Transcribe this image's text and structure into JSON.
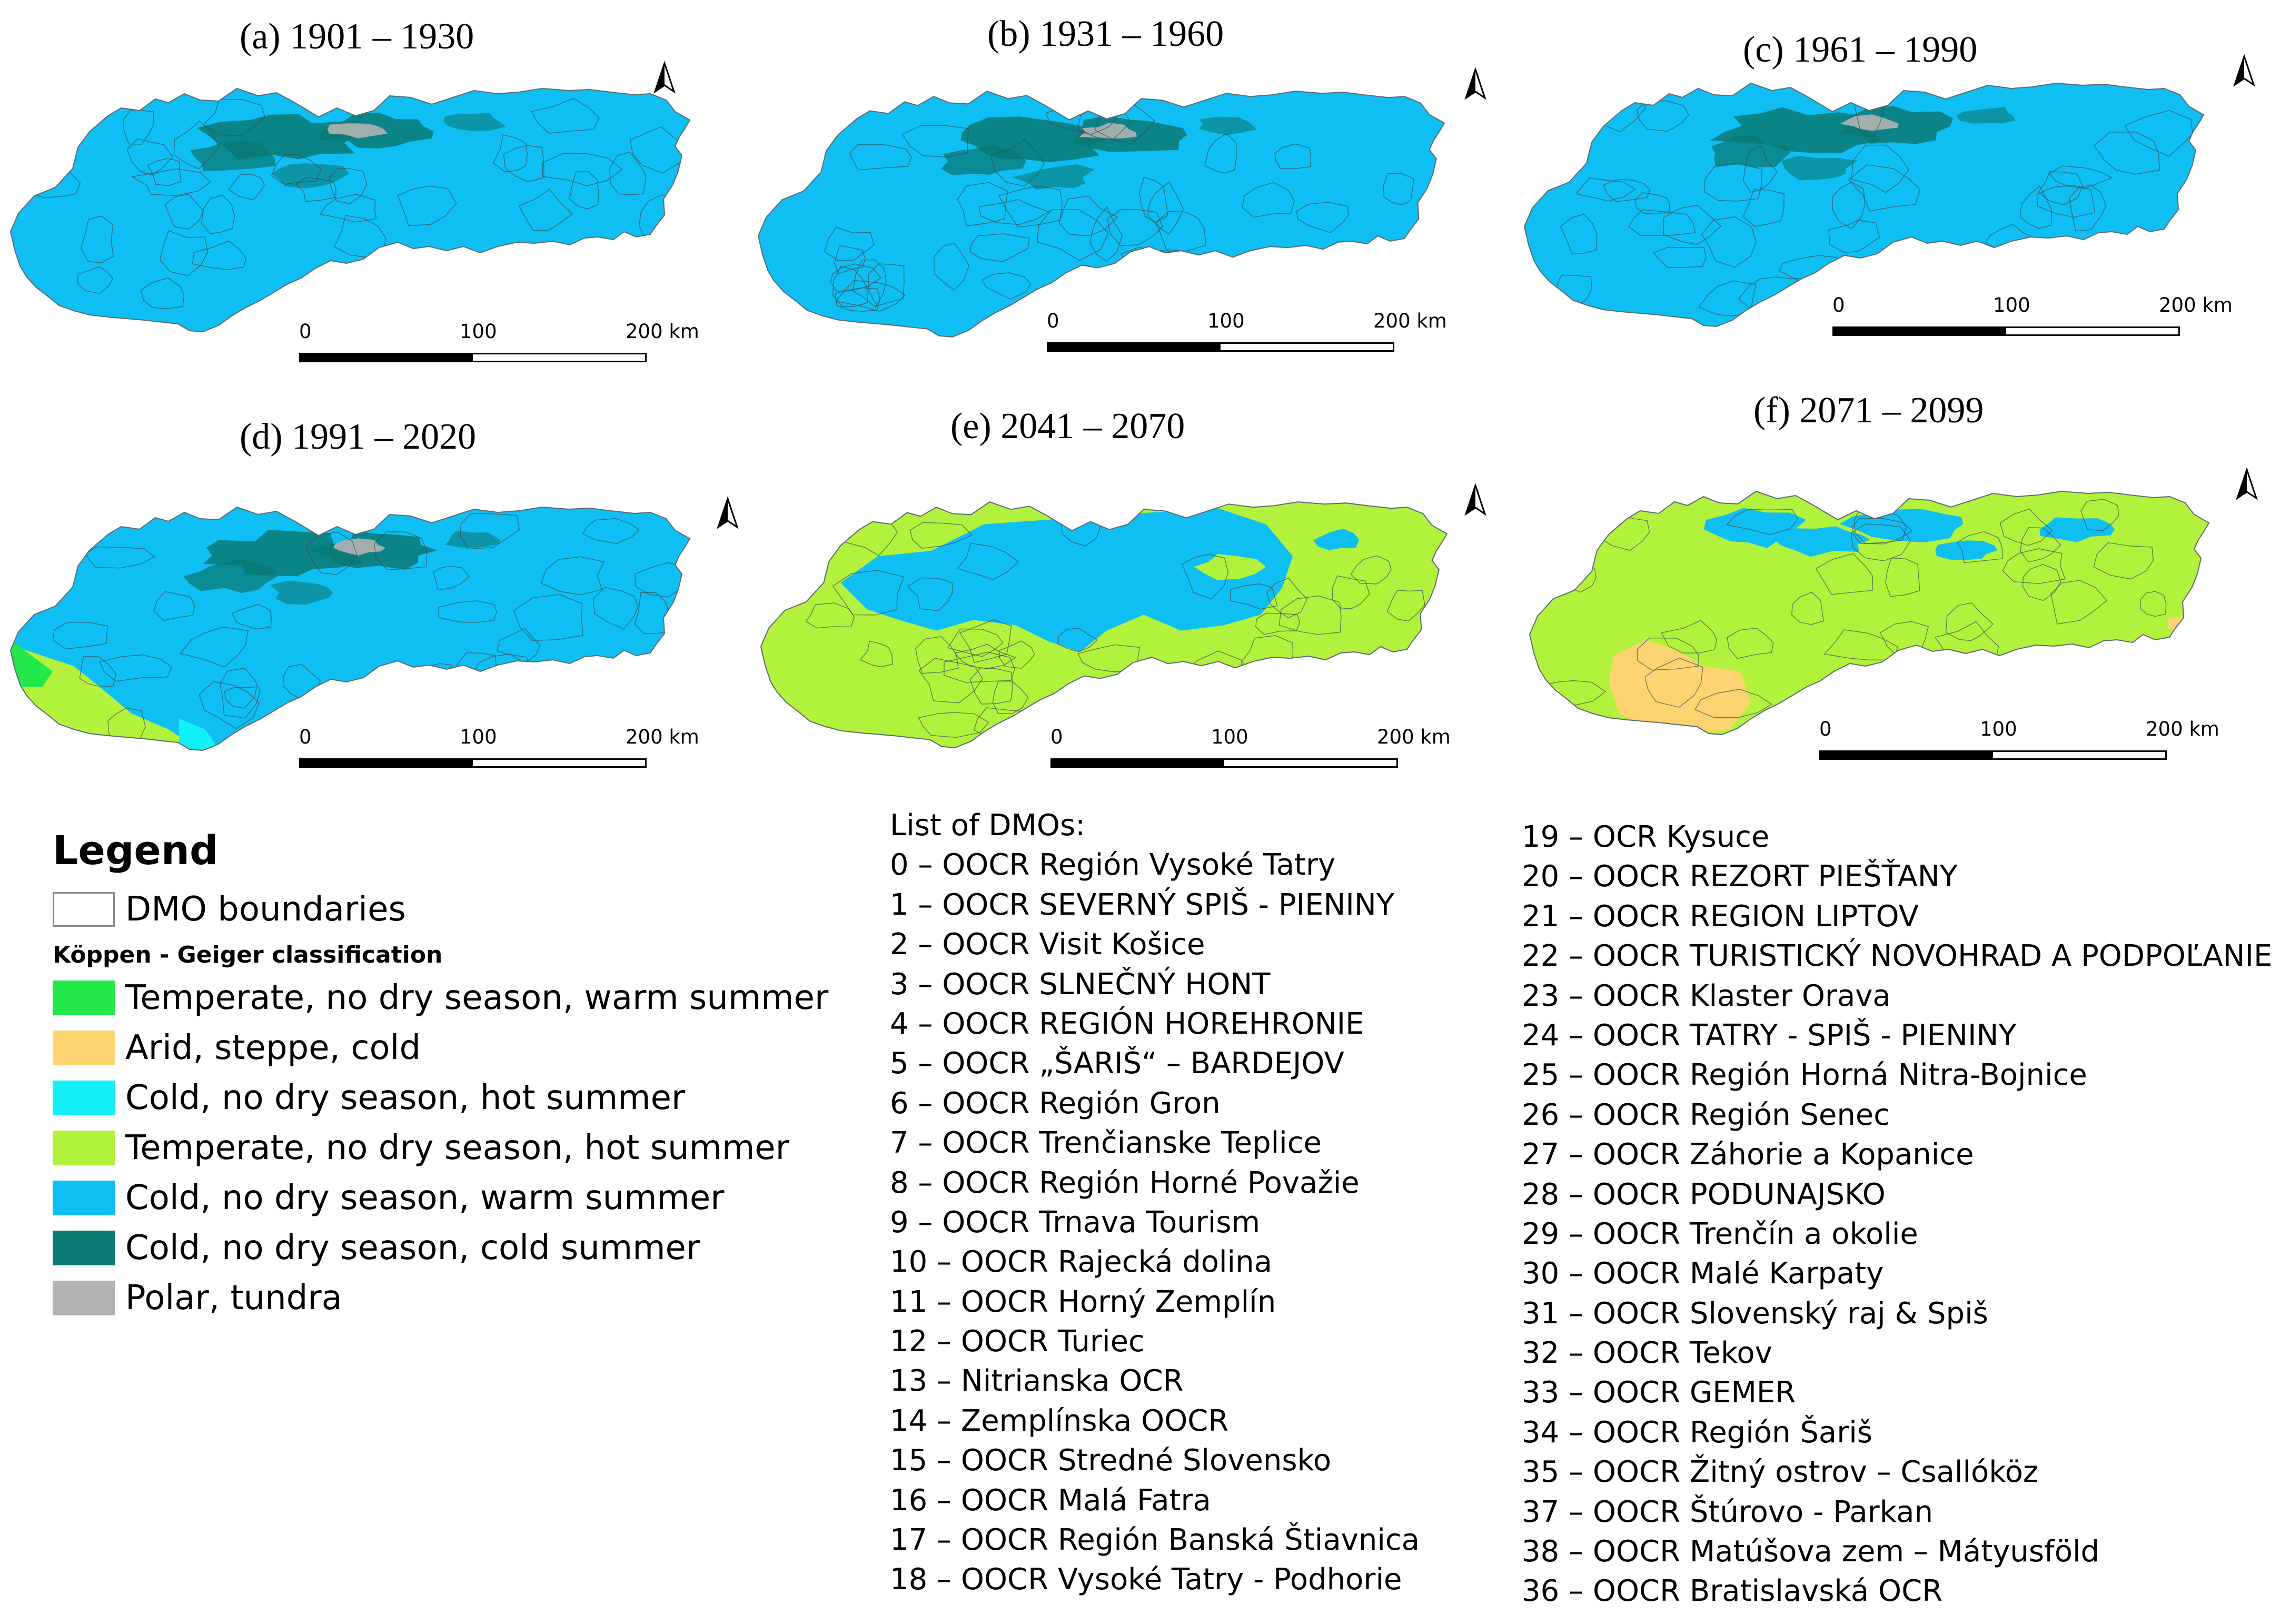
{
  "maps": [
    {
      "id": "a",
      "title": "(a) 1901 – 1930",
      "variant": "cold"
    },
    {
      "id": "b",
      "title": "(b) 1931 – 1960",
      "variant": "cold"
    },
    {
      "id": "c",
      "title": "(c) 1961 – 1990",
      "variant": "cold"
    },
    {
      "id": "d",
      "title": "(d) 1991 – 2020",
      "variant": "d"
    },
    {
      "id": "e",
      "title": "(e) 2041 – 2070",
      "variant": "e"
    },
    {
      "id": "f",
      "title": "(f) 2071 – 2099",
      "variant": "f"
    }
  ],
  "scale": {
    "tick0": "0",
    "tick1": "100",
    "tick2": "200 km"
  },
  "north_arrow_icon": "north-arrow-icon",
  "legend": {
    "title": "Legend",
    "boundary_label": "DMO boundaries",
    "classification_title": "Köppen - Geiger classification",
    "classes": [
      {
        "label": "Temperate, no dry season, warm summer",
        "color": "#22e84a"
      },
      {
        "label": "Arid, steppe, cold",
        "color": "#fdd470"
      },
      {
        "label": "Cold, no dry season, hot summer",
        "color": "#13f0f5"
      },
      {
        "label": "Temperate, no dry season, hot summer",
        "color": "#b3f23c"
      },
      {
        "label": "Cold, no dry season, warm summer",
        "color": "#0fbef2"
      },
      {
        "label": "Cold, no dry season, cold summer",
        "color": "#0a7a75"
      },
      {
        "label": "Polar, tundra",
        "color": "#b2b2b2"
      }
    ]
  },
  "dmo_list": {
    "title": "List of DMOs:",
    "items": [
      "0 – OOCR Región Vysoké Tatry",
      "1 – OOCR SEVERNÝ SPIŠ - PIENINY",
      "2 – OOCR Visit Košice",
      "3 – OOCR SLNEČNÝ HONT",
      "4 – OOCR REGIÓN HOREHRONIE",
      "5 – OOCR „ŠARIŠ“ – BARDEJOV",
      "6 – OOCR Región Gron",
      "7 – OOCR Trenčianske Teplice",
      "8 – OOCR Región Horné Považie",
      "9 – OOCR Trnava Tourism",
      "10 – OOCR Rajecká dolina",
      "11 – OOCR Horný Zemplín",
      "12 – OOCR Turiec",
      "13 – Nitrianska OCR",
      "14 – Zemplínska OOCR",
      "15 – OOCR Stredné Slovensko",
      "16 – OOCR Malá Fatra",
      "17 – OOCR Región Banská Štiavnica",
      "18 – OOCR Vysoké Tatry - Podhorie"
    ],
    "items2": [
      "19 – OCR Kysuce",
      "20 – OOCR REZORT PIEŠŤANY",
      "21 – OOCR REGION LIPTOV",
      "22 – OOCR TURISTICKÝ NOVOHRAD A PODPOĽANIE",
      "23 – OOCR Klaster Orava",
      "24 – OOCR TATRY - SPIŠ - PIENINY",
      "25 – OOCR Región Horná Nitra-Bojnice",
      "26 – OOCR Región Senec",
      "27 – OOCR Záhorie a Kopanice",
      "28 – OOCR PODUNAJSKO",
      "29 – OOCR Trenčín a okolie",
      "30 – OOCR Malé Karpaty",
      "31 – OOCR Slovenský raj & Spiš",
      "32 – OOCR Tekov",
      "33 – OOCR GEMER",
      "34 – OOCR Región Šariš",
      "35 – OOCR Žitný ostrov – Csallóköz",
      "37 – OOCR Štúrovo - Parkan",
      "38 – OOCR Matúšova zem – Mátyusföld",
      "36 – OOCR Bratislavská OCR"
    ]
  }
}
